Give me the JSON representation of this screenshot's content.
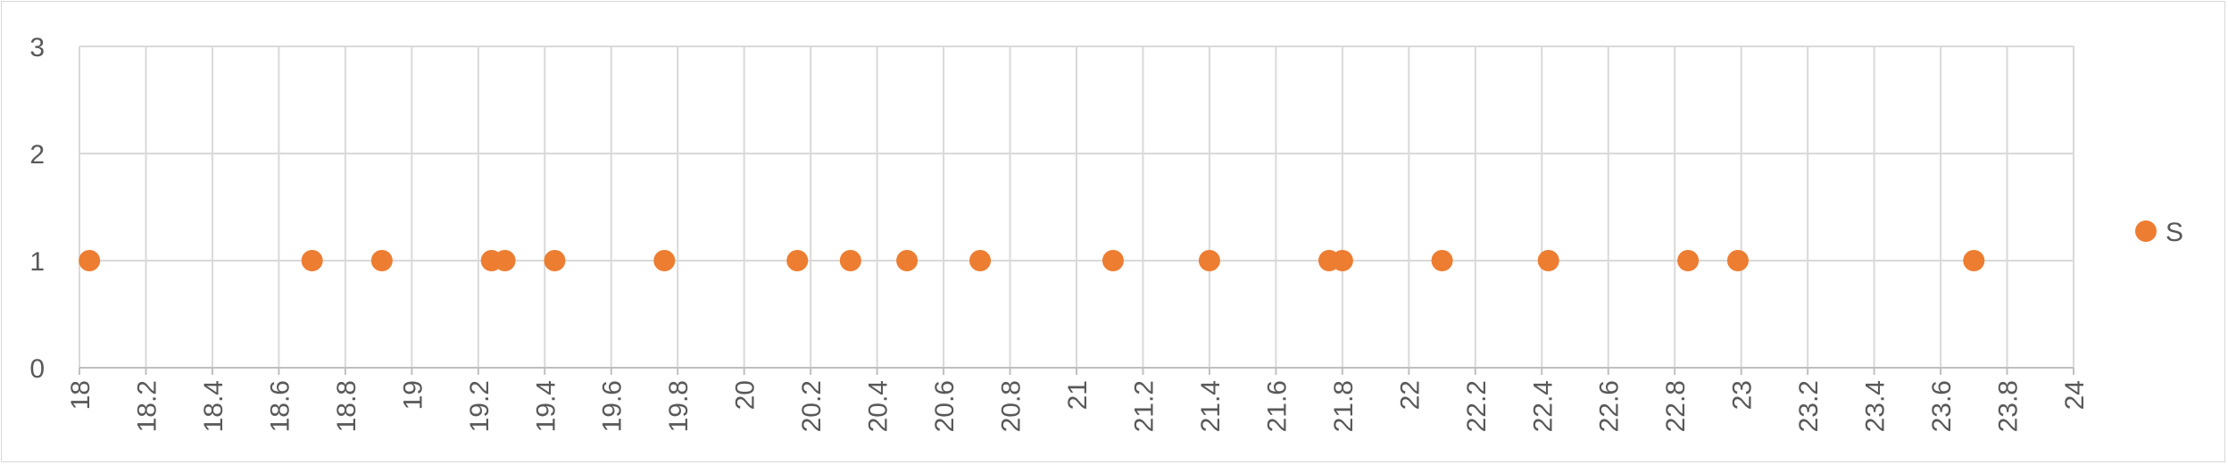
{
  "chart_data": {
    "type": "scatter",
    "title": "",
    "xlabel": "",
    "ylabel": "",
    "xlim": [
      18,
      24
    ],
    "ylim": [
      0,
      3
    ],
    "x_ticks": [
      "18",
      "18.2",
      "18.4",
      "18.6",
      "18.8",
      "19",
      "19.2",
      "19.4",
      "19.6",
      "19.8",
      "20",
      "20.2",
      "20.4",
      "20.6",
      "20.8",
      "21",
      "21.2",
      "21.4",
      "21.6",
      "21.8",
      "22",
      "22.2",
      "22.4",
      "22.6",
      "22.8",
      "23",
      "23.2",
      "23.4",
      "23.6",
      "23.8",
      "24"
    ],
    "y_ticks": [
      "0",
      "1",
      "2",
      "3"
    ],
    "grid": true,
    "legend_position": "right",
    "series": [
      {
        "name": "S",
        "color": "#ED7D31",
        "points": [
          {
            "x": 18.03,
            "y": 1
          },
          {
            "x": 18.7,
            "y": 1
          },
          {
            "x": 18.91,
            "y": 1
          },
          {
            "x": 19.24,
            "y": 1
          },
          {
            "x": 19.28,
            "y": 1
          },
          {
            "x": 19.43,
            "y": 1
          },
          {
            "x": 19.76,
            "y": 1
          },
          {
            "x": 20.16,
            "y": 1
          },
          {
            "x": 20.32,
            "y": 1
          },
          {
            "x": 20.49,
            "y": 1
          },
          {
            "x": 20.71,
            "y": 1
          },
          {
            "x": 21.11,
            "y": 1
          },
          {
            "x": 21.4,
            "y": 1
          },
          {
            "x": 21.76,
            "y": 1
          },
          {
            "x": 21.8,
            "y": 1
          },
          {
            "x": 22.1,
            "y": 1
          },
          {
            "x": 22.42,
            "y": 1
          },
          {
            "x": 22.84,
            "y": 1
          },
          {
            "x": 22.99,
            "y": 1
          },
          {
            "x": 23.7,
            "y": 1
          }
        ]
      }
    ]
  }
}
